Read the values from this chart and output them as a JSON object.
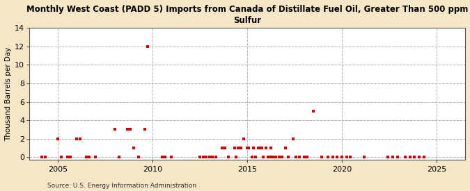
{
  "title": "Monthly West Coast (PADD 5) Imports from Canada of Distillate Fuel Oil, Greater Than 500 ppm\nSulfur",
  "ylabel": "Thousand Barrels per Day",
  "source": "Source: U.S. Energy Information Administration",
  "fig_background_color": "#f5e6c8",
  "plot_background_color": "#ffffff",
  "xlim": [
    2003.5,
    2026.5
  ],
  "ylim": [
    -0.3,
    14
  ],
  "yticks": [
    0,
    2,
    4,
    6,
    8,
    10,
    12,
    14
  ],
  "xticks": [
    2005,
    2010,
    2015,
    2020,
    2025
  ],
  "marker_color": "#cc0000",
  "marker_size": 8,
  "data_points": [
    [
      2004.17,
      0
    ],
    [
      2004.33,
      0
    ],
    [
      2005.0,
      2
    ],
    [
      2005.17,
      0
    ],
    [
      2005.5,
      0
    ],
    [
      2005.67,
      0
    ],
    [
      2006.0,
      2
    ],
    [
      2006.17,
      2
    ],
    [
      2006.5,
      0
    ],
    [
      2006.67,
      0
    ],
    [
      2007.0,
      0
    ],
    [
      2008.0,
      3
    ],
    [
      2008.25,
      0
    ],
    [
      2008.67,
      3
    ],
    [
      2008.83,
      3
    ],
    [
      2009.0,
      1
    ],
    [
      2009.25,
      0
    ],
    [
      2009.58,
      3
    ],
    [
      2009.75,
      12
    ],
    [
      2010.5,
      0
    ],
    [
      2010.67,
      0
    ],
    [
      2011.0,
      0
    ],
    [
      2012.5,
      0
    ],
    [
      2012.67,
      0
    ],
    [
      2012.83,
      0
    ],
    [
      2013.0,
      0
    ],
    [
      2013.17,
      0
    ],
    [
      2013.33,
      0
    ],
    [
      2013.67,
      1
    ],
    [
      2013.83,
      1
    ],
    [
      2014.0,
      0
    ],
    [
      2014.33,
      1
    ],
    [
      2014.42,
      0
    ],
    [
      2014.5,
      1
    ],
    [
      2014.67,
      1
    ],
    [
      2014.83,
      2
    ],
    [
      2015.0,
      1
    ],
    [
      2015.08,
      1
    ],
    [
      2015.25,
      0
    ],
    [
      2015.33,
      1
    ],
    [
      2015.42,
      0
    ],
    [
      2015.58,
      1
    ],
    [
      2015.67,
      1
    ],
    [
      2015.75,
      1
    ],
    [
      2015.83,
      0
    ],
    [
      2016.0,
      1
    ],
    [
      2016.08,
      0
    ],
    [
      2016.17,
      0
    ],
    [
      2016.25,
      1
    ],
    [
      2016.33,
      0
    ],
    [
      2016.42,
      0
    ],
    [
      2016.5,
      0
    ],
    [
      2016.67,
      0
    ],
    [
      2016.83,
      0
    ],
    [
      2017.0,
      1
    ],
    [
      2017.17,
      0
    ],
    [
      2017.42,
      2
    ],
    [
      2017.58,
      0
    ],
    [
      2017.75,
      0
    ],
    [
      2018.0,
      0
    ],
    [
      2018.17,
      0
    ],
    [
      2018.5,
      5
    ],
    [
      2018.92,
      0
    ],
    [
      2019.25,
      0
    ],
    [
      2019.5,
      0
    ],
    [
      2019.75,
      0
    ],
    [
      2020.0,
      0
    ],
    [
      2020.25,
      0
    ],
    [
      2020.42,
      0
    ],
    [
      2021.17,
      0
    ],
    [
      2022.42,
      0
    ],
    [
      2022.67,
      0
    ],
    [
      2022.92,
      0
    ],
    [
      2023.33,
      0
    ],
    [
      2023.58,
      0
    ],
    [
      2023.83,
      0
    ],
    [
      2024.08,
      0
    ],
    [
      2024.33,
      0
    ]
  ]
}
